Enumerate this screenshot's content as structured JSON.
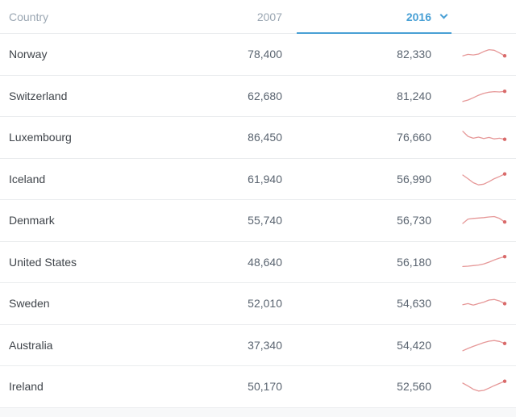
{
  "colors": {
    "accent_blue": "#49a0d5",
    "header_text": "#9aa6b2",
    "country_text": "#3f444a",
    "value_text": "#5a6470",
    "row_border": "#eaecee",
    "spark_line": "#e69898",
    "spark_dot": "#d96a6a",
    "footer_band": "#f7f8f9"
  },
  "header": {
    "country_label": "Country",
    "col_2007_label": "2007",
    "col_2016_label": "2016",
    "selected_column": "2016"
  },
  "rows": [
    {
      "country": "Norway",
      "value_2007": "78,400",
      "value_2016": "82,330",
      "spark": [
        38,
        48,
        44,
        50,
        67,
        80,
        76,
        58,
        38
      ]
    },
    {
      "country": "Switzerland",
      "value_2007": "62,680",
      "value_2016": "81,240",
      "spark": [
        12,
        22,
        38,
        55,
        68,
        76,
        80,
        78,
        82
      ]
    },
    {
      "country": "Luxembourg",
      "value_2007": "86,450",
      "value_2016": "76,660",
      "spark": [
        90,
        55,
        42,
        50,
        40,
        48,
        38,
        42,
        35
      ]
    },
    {
      "country": "Iceland",
      "value_2007": "61,940",
      "value_2016": "56,990",
      "spark": [
        78,
        52,
        25,
        10,
        15,
        32,
        52,
        68,
        85
      ]
    },
    {
      "country": "Denmark",
      "value_2007": "55,740",
      "value_2016": "56,730",
      "spark": [
        28,
        58,
        62,
        65,
        68,
        72,
        75,
        62,
        38
      ]
    },
    {
      "country": "United States",
      "value_2007": "48,640",
      "value_2016": "56,180",
      "spark": [
        20,
        22,
        26,
        30,
        38,
        50,
        65,
        78,
        88
      ]
    },
    {
      "country": "Sweden",
      "value_2007": "52,010",
      "value_2016": "54,630",
      "spark": [
        40,
        48,
        38,
        48,
        58,
        72,
        76,
        66,
        48
      ]
    },
    {
      "country": "Australia",
      "value_2007": "37,340",
      "value_2016": "54,420",
      "spark": [
        12,
        28,
        42,
        55,
        68,
        78,
        82,
        76,
        62
      ]
    },
    {
      "country": "Ireland",
      "value_2007": "50,170",
      "value_2016": "52,560",
      "spark": [
        72,
        52,
        30,
        18,
        22,
        38,
        55,
        70,
        85
      ]
    }
  ],
  "chart_data": {
    "type": "table",
    "columns": [
      "Country",
      "2007",
      "2016"
    ],
    "categories": [
      "Norway",
      "Switzerland",
      "Luxembourg",
      "Iceland",
      "Denmark",
      "United States",
      "Sweden",
      "Australia",
      "Ireland"
    ],
    "series": [
      {
        "name": "2007",
        "values": [
          78400,
          62680,
          86450,
          61940,
          55740,
          48640,
          52010,
          37340,
          50170
        ]
      },
      {
        "name": "2016",
        "values": [
          82330,
          81240,
          76660,
          56990,
          56730,
          56180,
          54630,
          54420,
          52560
        ]
      }
    ],
    "sparkline_note": "each row ends with a small red trend line (2007-2016) terminating in a red dot",
    "legend_position": "none",
    "selected_series": "2016"
  }
}
